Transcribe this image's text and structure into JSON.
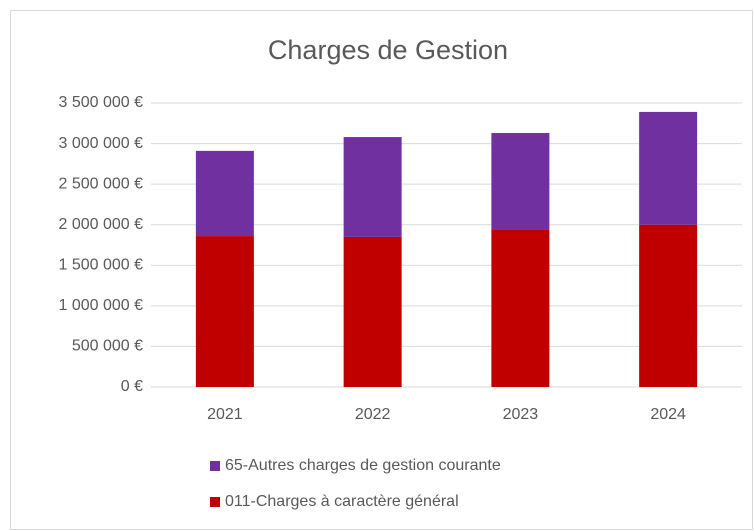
{
  "chart_data": {
    "type": "stacked_bar",
    "title": "Charges de Gestion",
    "categories": [
      "2021",
      "2022",
      "2023",
      "2024"
    ],
    "series": [
      {
        "name": "011-Charges à caractère général",
        "color": "#c00000",
        "values": [
          1860000,
          1850000,
          1935000,
          2000000
        ]
      },
      {
        "name": "65-Autres charges de gestion courante",
        "color": "#7030a0",
        "values": [
          1050000,
          1230000,
          1195000,
          1390000
        ]
      }
    ],
    "ylim": [
      0,
      3500000
    ],
    "yticks": [
      {
        "value": 0,
        "label": "0 €"
      },
      {
        "value": 500000,
        "label": "500 000 €"
      },
      {
        "value": 1000000,
        "label": "1 000 000 €"
      },
      {
        "value": 1500000,
        "label": "1 500 000 €"
      },
      {
        "value": 2000000,
        "label": "2 000 000 €"
      },
      {
        "value": 2500000,
        "label": "2 500 000 €"
      },
      {
        "value": 3000000,
        "label": "3 000 000 €"
      },
      {
        "value": 3500000,
        "label": "3 500 000 €"
      }
    ],
    "grid": true,
    "legend": "bottom"
  }
}
